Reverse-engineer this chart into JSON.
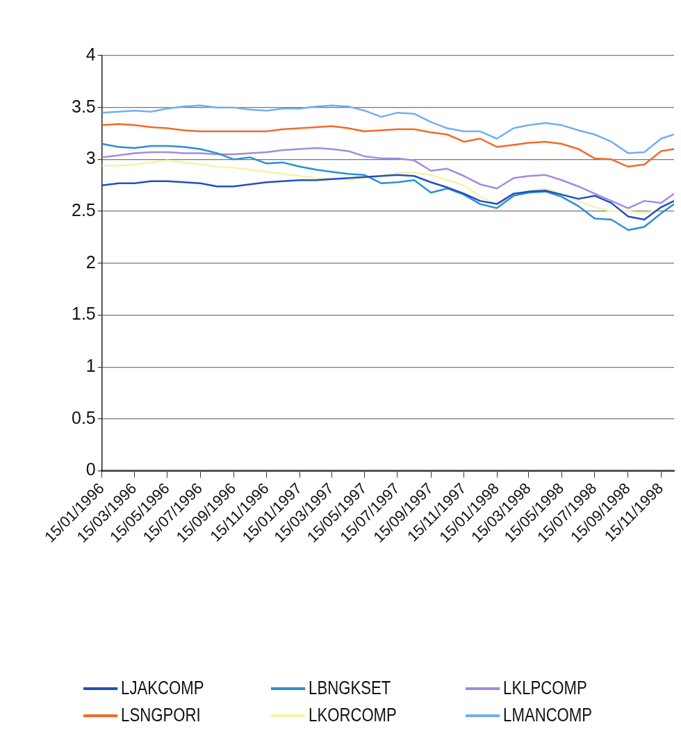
{
  "chart_data": {
    "type": "line",
    "x": [
      "1996-01-15",
      "1996-02-15",
      "1996-03-15",
      "1996-04-15",
      "1996-05-15",
      "1996-06-15",
      "1996-07-15",
      "1996-08-15",
      "1996-09-15",
      "1996-10-15",
      "1996-11-15",
      "1996-12-15",
      "1997-01-15",
      "1997-02-15",
      "1997-03-15",
      "1997-04-15",
      "1997-05-15",
      "1997-06-15",
      "1997-07-15",
      "1997-08-15",
      "1997-09-15",
      "1997-10-15",
      "1997-11-15",
      "1997-12-15",
      "1998-01-15",
      "1998-02-15",
      "1998-03-15",
      "1998-04-15",
      "1998-05-15",
      "1998-06-15",
      "1998-07-15",
      "1998-08-15",
      "1998-09-15",
      "1998-10-15",
      "1998-11-15",
      "1998-12-09"
    ],
    "series": [
      {
        "name": "LJAKCOMP",
        "color": "#1f4fc8",
        "values": [
          2.75,
          2.77,
          2.77,
          2.79,
          2.79,
          2.78,
          2.77,
          2.74,
          2.74,
          2.76,
          2.78,
          2.79,
          2.8,
          2.8,
          2.81,
          2.82,
          2.83,
          2.84,
          2.85,
          2.84,
          2.78,
          2.73,
          2.67,
          2.6,
          2.57,
          2.67,
          2.69,
          2.7,
          2.66,
          2.62,
          2.65,
          2.58,
          2.45,
          2.42,
          2.54,
          2.6
        ]
      },
      {
        "name": "LBNGKSET",
        "color": "#2a8fd6",
        "values": [
          3.15,
          3.12,
          3.11,
          3.13,
          3.13,
          3.12,
          3.1,
          3.06,
          3.0,
          3.02,
          2.96,
          2.97,
          2.93,
          2.9,
          2.88,
          2.86,
          2.85,
          2.77,
          2.78,
          2.8,
          2.68,
          2.72,
          2.66,
          2.57,
          2.53,
          2.65,
          2.68,
          2.69,
          2.64,
          2.55,
          2.43,
          2.42,
          2.32,
          2.35,
          2.48,
          2.57
        ]
      },
      {
        "name": "LKLPCOMP",
        "color": "#a58ae0",
        "values": [
          3.02,
          3.04,
          3.06,
          3.07,
          3.07,
          3.06,
          3.06,
          3.05,
          3.05,
          3.06,
          3.07,
          3.09,
          3.1,
          3.11,
          3.1,
          3.08,
          3.03,
          3.01,
          3.01,
          2.99,
          2.89,
          2.91,
          2.84,
          2.76,
          2.72,
          2.82,
          2.84,
          2.85,
          2.8,
          2.74,
          2.67,
          2.6,
          2.53,
          2.6,
          2.58,
          2.67
        ]
      },
      {
        "name": "LSNGPORI",
        "color": "#f26a2a",
        "values": [
          3.33,
          3.34,
          3.33,
          3.31,
          3.3,
          3.28,
          3.27,
          3.27,
          3.27,
          3.27,
          3.27,
          3.29,
          3.3,
          3.31,
          3.32,
          3.3,
          3.27,
          3.28,
          3.29,
          3.29,
          3.26,
          3.24,
          3.17,
          3.2,
          3.12,
          3.14,
          3.16,
          3.17,
          3.15,
          3.1,
          3.01,
          3.0,
          2.93,
          2.95,
          3.08,
          3.1
        ]
      },
      {
        "name": "LKORCOMP",
        "color": "#f5f3a8",
        "values": [
          2.94,
          2.94,
          2.95,
          2.97,
          2.99,
          2.97,
          2.95,
          2.93,
          2.92,
          2.9,
          2.88,
          2.86,
          2.84,
          2.82,
          2.81,
          2.8,
          2.82,
          2.84,
          2.87,
          2.87,
          2.85,
          2.8,
          2.75,
          2.64,
          2.57,
          2.64,
          2.7,
          2.72,
          2.67,
          2.6,
          2.54,
          2.5,
          2.5,
          2.48,
          2.52,
          2.6
        ]
      },
      {
        "name": "LMANCOMP",
        "color": "#74aef0",
        "values": [
          3.45,
          3.46,
          3.47,
          3.46,
          3.49,
          3.51,
          3.52,
          3.5,
          3.5,
          3.48,
          3.47,
          3.49,
          3.49,
          3.51,
          3.52,
          3.51,
          3.47,
          3.41,
          3.45,
          3.44,
          3.36,
          3.3,
          3.27,
          3.27,
          3.2,
          3.3,
          3.33,
          3.35,
          3.33,
          3.28,
          3.24,
          3.17,
          3.06,
          3.07,
          3.2,
          3.24
        ]
      }
    ],
    "xlim": [
      "1996-01-15",
      "1998-12-09"
    ],
    "xticks": [
      {
        "value": "1996-01-15",
        "label": "15/01/1996"
      },
      {
        "value": "1996-03-15",
        "label": "15/03/1996"
      },
      {
        "value": "1996-05-15",
        "label": "15/05/1996"
      },
      {
        "value": "1996-07-15",
        "label": "15/07/1996"
      },
      {
        "value": "1996-09-15",
        "label": "15/09/1996"
      },
      {
        "value": "1996-11-15",
        "label": "15/11/1996"
      },
      {
        "value": "1997-01-15",
        "label": "15/01/1997"
      },
      {
        "value": "1997-03-15",
        "label": "15/03/1997"
      },
      {
        "value": "1997-05-15",
        "label": "15/05/1997"
      },
      {
        "value": "1997-07-15",
        "label": "15/07/1997"
      },
      {
        "value": "1997-09-15",
        "label": "15/09/1997"
      },
      {
        "value": "1997-11-15",
        "label": "15/11/1997"
      },
      {
        "value": "1998-01-15",
        "label": "15/01/1998"
      },
      {
        "value": "1998-03-15",
        "label": "15/03/1998"
      },
      {
        "value": "1998-05-15",
        "label": "15/05/1998"
      },
      {
        "value": "1998-07-15",
        "label": "15/07/1998"
      },
      {
        "value": "1998-09-15",
        "label": "15/09/1998"
      },
      {
        "value": "1998-11-15",
        "label": "15/11/1998"
      }
    ],
    "ylim": [
      0,
      4
    ],
    "yticks": [
      0,
      0.5,
      1,
      1.5,
      2,
      2.5,
      3,
      3.5,
      4
    ],
    "grid": "y",
    "legend": "bottom",
    "marker": "none",
    "line_style": "solid"
  }
}
